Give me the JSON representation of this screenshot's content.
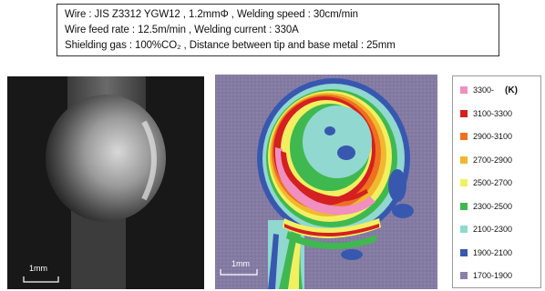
{
  "conditions": {
    "line1": "Wire : JIS Z3312 YGW12 , 1.2mmΦ  , Welding speed : 30cm/min",
    "line2": "Wire feed rate : 12.5m/min , Welding current : 330A",
    "line3": "Shielding gas : 100%CO₂ , Distance between tip and base metal : 25mm"
  },
  "photo": {
    "scale_label": "1mm"
  },
  "thermal": {
    "scale_label": "1mm"
  },
  "legend": {
    "unit": "(K)",
    "items": [
      {
        "label": "3300-",
        "color": "#f08fc0"
      },
      {
        "label": "3100-3300",
        "color": "#d42020"
      },
      {
        "label": "2900-3100",
        "color": "#ee7020"
      },
      {
        "label": "2700-2900",
        "color": "#f0b830"
      },
      {
        "label": "2500-2700",
        "color": "#f2f060"
      },
      {
        "label": "2300-2500",
        "color": "#40b850"
      },
      {
        "label": "2100-2300",
        "color": "#90d8d0"
      },
      {
        "label": "1900-2100",
        "color": "#3858b0"
      },
      {
        "label": "1700-1900",
        "color": "#8a80a8"
      }
    ]
  }
}
